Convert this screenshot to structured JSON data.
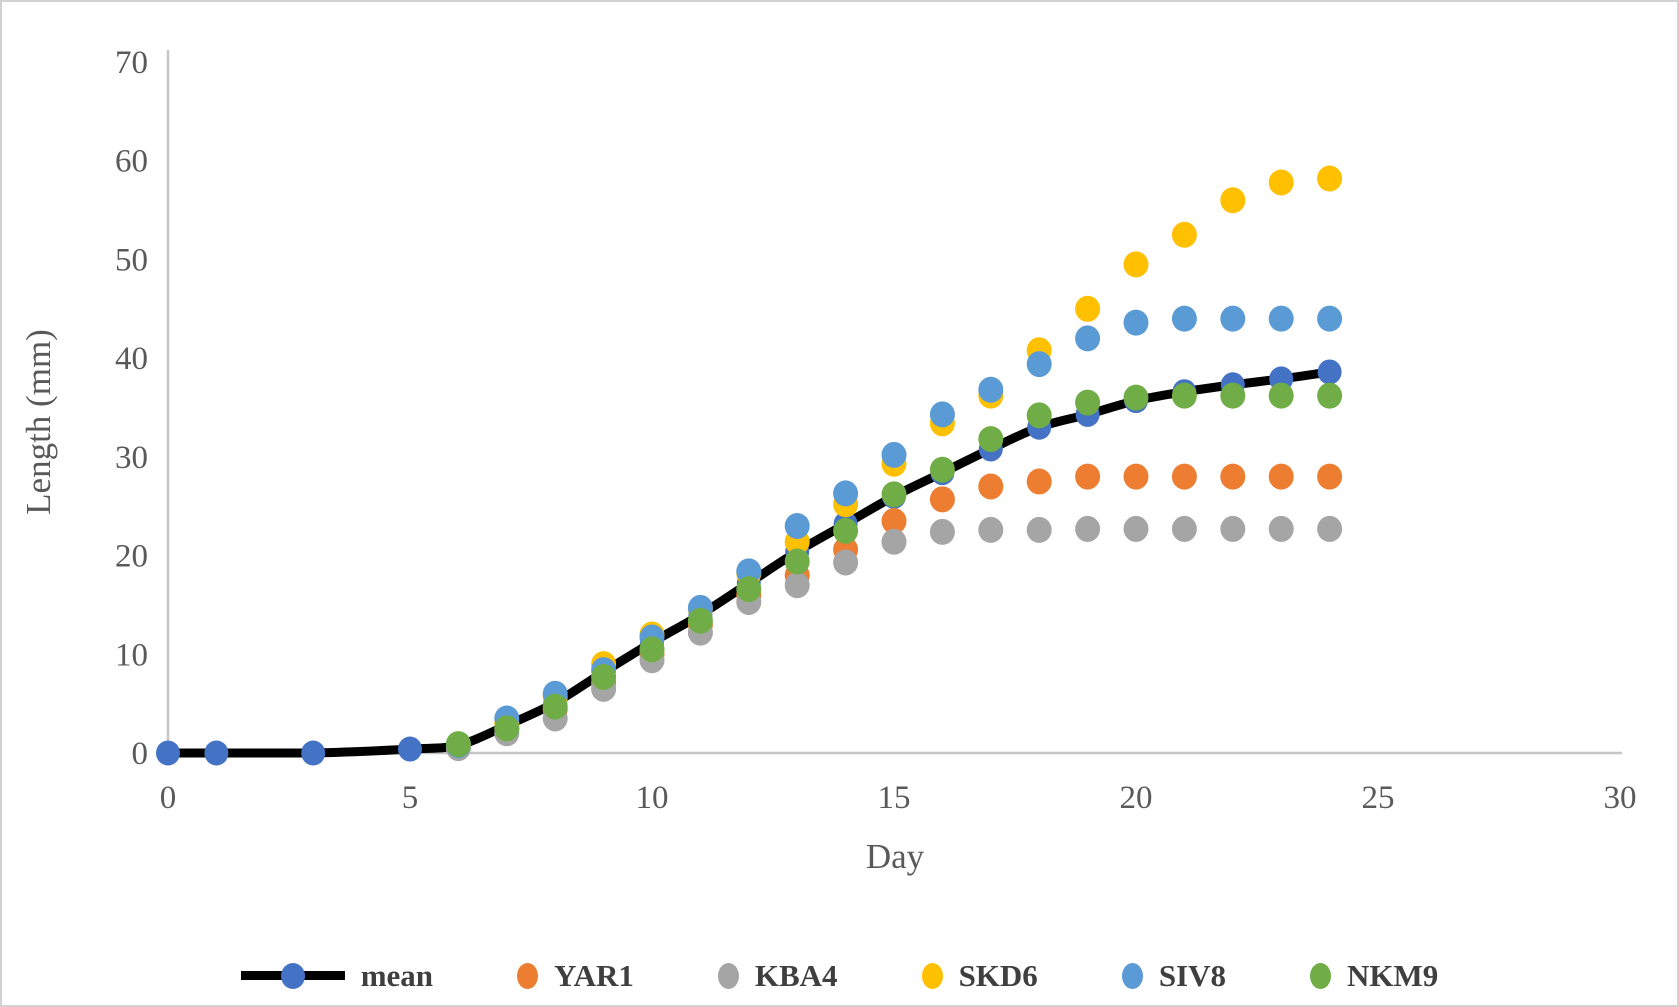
{
  "figure": {
    "background": "#ffffff",
    "border_color": "#d2d2d2",
    "axis_line_color": "#c6c6c6",
    "tick_text_color": "#595959",
    "legend_text_color": "#3f3f3f"
  },
  "chart_data": {
    "type": "scatter",
    "title": "",
    "xlabel": "Day",
    "ylabel": "Length (mm)",
    "xlim": [
      0,
      30
    ],
    "ylim": [
      0,
      70
    ],
    "x_ticks": [
      0,
      5,
      10,
      15,
      20,
      25,
      30
    ],
    "y_ticks": [
      0,
      10,
      20,
      30,
      40,
      50,
      60,
      70
    ],
    "grid": false,
    "legend_position": "bottom",
    "x": [
      0,
      1,
      3,
      5,
      6,
      7,
      8,
      9,
      10,
      11,
      12,
      13,
      14,
      15,
      16,
      17,
      18,
      19,
      20,
      21,
      22,
      23,
      24
    ],
    "series": [
      {
        "name": "mean",
        "style": "smooth-line-with-markers",
        "marker_color": "#4472C4",
        "line_color": "#000000",
        "values": [
          0,
          0,
          0,
          0.4,
          0.8,
          2.8,
          5.1,
          8.2,
          11.2,
          14.0,
          17.2,
          20.4,
          23.2,
          26.0,
          28.4,
          30.8,
          33.0,
          34.3,
          35.7,
          36.6,
          37.3,
          37.9,
          38.6
        ]
      },
      {
        "name": "YAR1",
        "style": "scatter",
        "marker_color": "#ED7D31",
        "values": [
          null,
          null,
          null,
          null,
          0.6,
          2.4,
          4.4,
          7.1,
          10.0,
          13.0,
          16.0,
          18.0,
          20.6,
          23.5,
          25.7,
          27.0,
          27.5,
          28.0,
          28.0,
          28.0,
          28.0,
          28.0,
          28.0
        ]
      },
      {
        "name": "KBA4",
        "style": "scatter",
        "marker_color": "#A5A5A5",
        "values": [
          null,
          null,
          null,
          null,
          0.5,
          2.0,
          3.5,
          6.5,
          9.4,
          12.2,
          15.3,
          17.0,
          19.3,
          21.4,
          22.4,
          22.6,
          22.6,
          22.7,
          22.7,
          22.7,
          22.7,
          22.7,
          22.7
        ]
      },
      {
        "name": "SKD6",
        "style": "scatter",
        "marker_color": "#FFC000",
        "values": [
          null,
          null,
          null,
          null,
          0.8,
          3.0,
          5.7,
          9.0,
          12.0,
          14.6,
          18.2,
          21.4,
          25.2,
          29.3,
          33.4,
          36.2,
          40.8,
          45.0,
          49.5,
          52.5,
          56.0,
          57.8,
          58.2
        ]
      },
      {
        "name": "SIV8",
        "style": "scatter",
        "marker_color": "#5B9BD5",
        "values": [
          null,
          null,
          null,
          null,
          0.8,
          3.5,
          6.0,
          8.4,
          11.7,
          14.7,
          18.4,
          23.0,
          26.3,
          30.2,
          34.3,
          36.8,
          39.4,
          42.0,
          43.6,
          44.0,
          44.0,
          44.0,
          44.0
        ]
      },
      {
        "name": "NKM9",
        "style": "scatter",
        "marker_color": "#70AD47",
        "values": [
          null,
          null,
          null,
          null,
          0.9,
          2.5,
          4.7,
          7.7,
          10.5,
          13.4,
          16.6,
          19.4,
          22.5,
          26.2,
          28.7,
          31.8,
          34.2,
          35.5,
          36.0,
          36.2,
          36.2,
          36.2,
          36.2
        ]
      }
    ]
  }
}
